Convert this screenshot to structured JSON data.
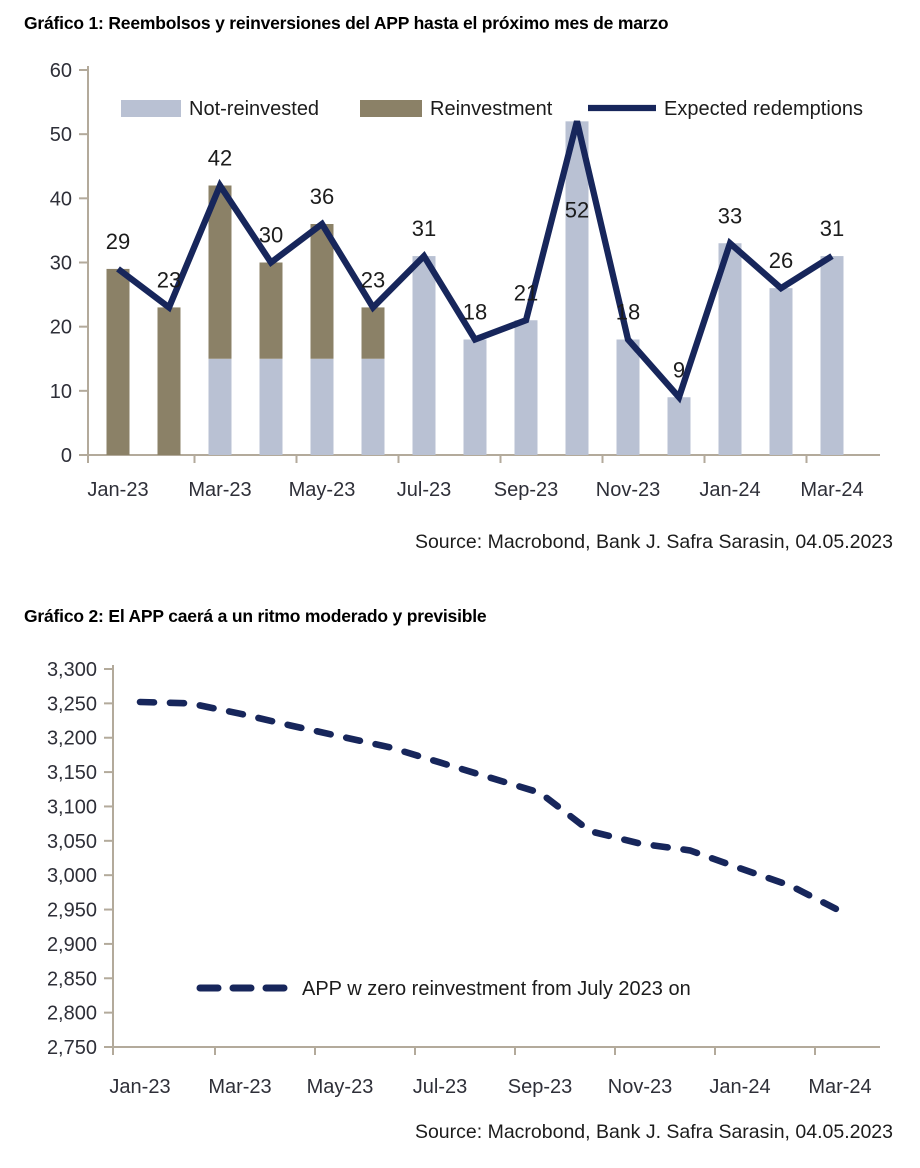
{
  "page": {
    "chart1": {
      "title": "Gráfico 1: Reembolsos y reinversiones del APP hasta el próximo mes de marzo",
      "source": "Source: Macrobond, Bank J. Safra Sarasin, 04.05.2023"
    },
    "chart2": {
      "title": "Gráfico 2: El APP caerá a un ritmo moderado y previsible",
      "source": "Source: Macrobond, Bank J. Safra Sarasin, 04.05.2023"
    }
  },
  "colors": {
    "navy": "#17265b",
    "bar_blue": "#b9c1d3",
    "bar_khaki": "#8b8167",
    "axis": "#b3aa9b",
    "tick_text": "#2e2f38",
    "label_text": "#1c1c1c"
  },
  "chart_data": [
    {
      "type": "bar",
      "title": "Gráfico 1: Reembolsos y reinversiones del APP hasta el próximo mes de marzo",
      "categories": [
        "Jan-23",
        "Feb-23",
        "Mar-23",
        "Apr-23",
        "May-23",
        "Jun-23",
        "Jul-23",
        "Aug-23",
        "Sep-23",
        "Oct-23",
        "Nov-23",
        "Dec-23",
        "Jan-24",
        "Feb-24",
        "Mar-24"
      ],
      "x_tick_labels": [
        "Jan-23",
        "Mar-23",
        "May-23",
        "Jul-23",
        "Sep-23",
        "Nov-23",
        "Jan-24",
        "Mar-24"
      ],
      "series": [
        {
          "name": "Not-reinvested",
          "type": "bar",
          "color": "#b9c1d3",
          "values": [
            0,
            0,
            15,
            15,
            15,
            15,
            31,
            18,
            21,
            52,
            18,
            9,
            33,
            26,
            31
          ]
        },
        {
          "name": "Reinvestment",
          "type": "bar",
          "color": "#8b8167",
          "values": [
            29,
            23,
            27,
            15,
            21,
            8,
            0,
            0,
            0,
            0,
            0,
            0,
            0,
            0,
            0
          ]
        },
        {
          "name": "Expected redemptions",
          "type": "line",
          "color": "#17265b",
          "values": [
            29,
            23,
            42,
            30,
            36,
            23,
            31,
            18,
            21,
            52,
            18,
            9,
            33,
            26,
            31
          ]
        }
      ],
      "point_labels": [
        29,
        23,
        42,
        30,
        36,
        23,
        31,
        18,
        21,
        52,
        18,
        9,
        33,
        26,
        31
      ],
      "xlabel": "",
      "ylabel": "",
      "ylim": [
        0,
        60
      ],
      "y_ticks": [
        0,
        10,
        20,
        30,
        40,
        50,
        60
      ],
      "grid": false,
      "legend_position": "top",
      "source": "Source: Macrobond, Bank J. Safra Sarasin, 04.05.2023"
    },
    {
      "type": "line",
      "title": "Gráfico 2: El APP caerá a un ritmo moderado y previsible",
      "categories": [
        "Jan-23",
        "Feb-23",
        "Mar-23",
        "Apr-23",
        "May-23",
        "Jun-23",
        "Jul-23",
        "Aug-23",
        "Sep-23",
        "Oct-23",
        "Nov-23",
        "Dec-23",
        "Jan-24",
        "Feb-24",
        "Mar-24"
      ],
      "x_tick_labels": [
        "Jan-23",
        "Mar-23",
        "May-23",
        "Jul-23",
        "Sep-23",
        "Nov-23",
        "Jan-24",
        "Mar-24"
      ],
      "series": [
        {
          "name": "APP w zero reinvestment from July 2023 on",
          "type": "line",
          "dashed": true,
          "color": "#17265b",
          "values": [
            3252,
            3250,
            3235,
            3218,
            3202,
            3186,
            3164,
            3142,
            3120,
            3064,
            3046,
            3036,
            3010,
            2985,
            2948
          ]
        }
      ],
      "xlabel": "",
      "ylabel": "",
      "ylim": [
        2750,
        3300
      ],
      "y_ticks": [
        2750,
        2800,
        2850,
        2900,
        2950,
        3000,
        3050,
        3100,
        3150,
        3200,
        3250,
        3300
      ],
      "grid": false,
      "legend_position": "inside-bottom",
      "source": "Source: Macrobond, Bank J. Safra Sarasin, 04.05.2023"
    }
  ]
}
